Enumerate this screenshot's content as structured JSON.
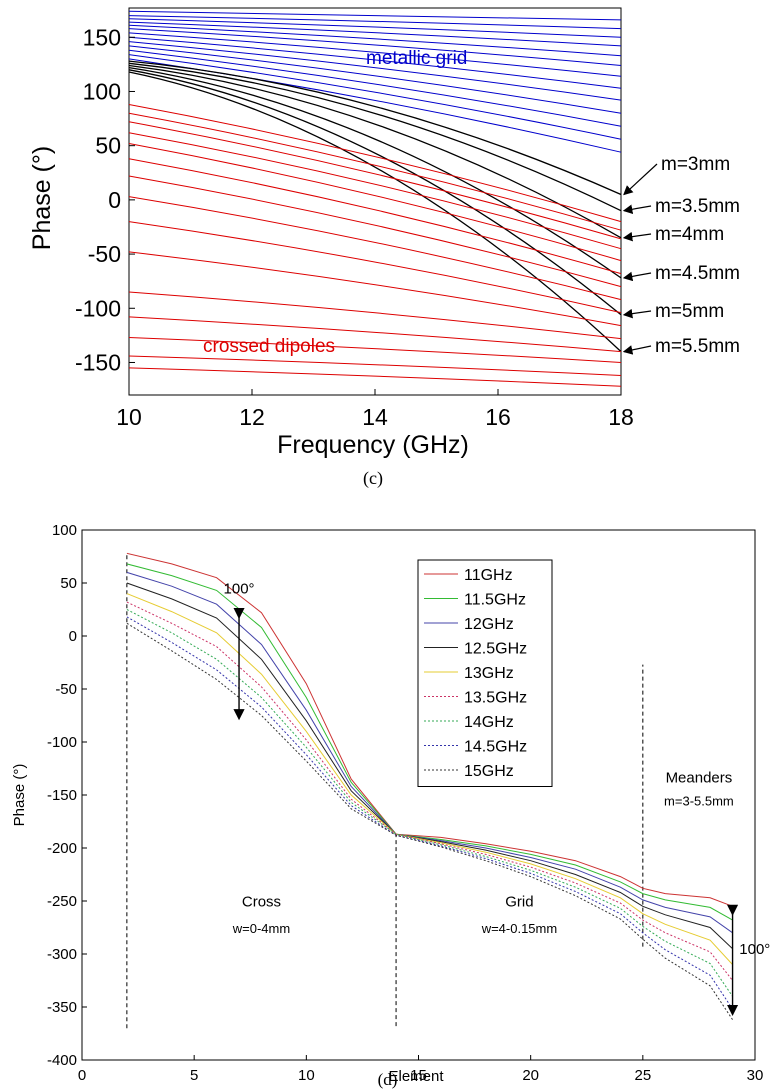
{
  "charts": [
    {
      "caption": "(c)",
      "chart_data": {
        "type": "line",
        "xlabel": "Frequency (GHz)",
        "ylabel": "Phase (°)",
        "xlim": [
          10,
          18
        ],
        "ylim": [
          -180,
          180
        ],
        "xticks": [
          10,
          12,
          14,
          16,
          18
        ],
        "yticks": [
          150,
          100,
          50,
          0,
          -50,
          -100,
          -150
        ],
        "grid": false,
        "groups": [
          {
            "label": "metallic grid",
            "color": "#0000cc",
            "series": [
              {
                "values": [
                  174,
                  166
                ]
              },
              {
                "values": [
                  170,
                  158
                ]
              },
              {
                "values": [
                  167,
                  150
                ]
              },
              {
                "values": [
                  164,
                  142
                ]
              },
              {
                "values": [
                  161,
                  133
                ]
              },
              {
                "values": [
                  158,
                  124
                ]
              },
              {
                "values": [
                  154,
                  114
                ]
              },
              {
                "values": [
                  150,
                  103
                ]
              },
              {
                "values": [
                  146,
                  92
                ]
              },
              {
                "values": [
                  142,
                  80
                ]
              },
              {
                "values": [
                  138,
                  68
                ]
              },
              {
                "values": [
                  134,
                  56
                ]
              },
              {
                "values": [
                  130,
                  44
                ]
              }
            ]
          },
          {
            "label": "meanders",
            "color": "#000000",
            "series": [
              {
                "name": "m=3mm",
                "values": [
                  128,
                  5
                ]
              },
              {
                "name": "m=3.5mm",
                "values": [
                  126,
                  -10
                ]
              },
              {
                "name": "m=4mm",
                "values": [
                  124,
                  -35
                ]
              },
              {
                "name": "m=4.5mm",
                "values": [
                  122,
                  -72
                ]
              },
              {
                "name": "m=5mm",
                "values": [
                  120,
                  -106
                ]
              },
              {
                "name": "m=5.5mm",
                "values": [
                  118,
                  -140
                ]
              }
            ]
          },
          {
            "label": "crossed dipoles",
            "color": "#dd0000",
            "series": [
              {
                "values": [
                  88,
                  -20
                ]
              },
              {
                "values": [
                  80,
                  -28
                ]
              },
              {
                "values": [
                  72,
                  -36
                ]
              },
              {
                "values": [
                  62,
                  -45
                ]
              },
              {
                "values": [
                  52,
                  -56
                ]
              },
              {
                "values": [
                  38,
                  -68
                ]
              },
              {
                "values": [
                  22,
                  -80
                ]
              },
              {
                "values": [
                  3,
                  -92
                ]
              },
              {
                "values": [
                  -20,
                  -104
                ]
              },
              {
                "values": [
                  -48,
                  -116
                ]
              },
              {
                "values": [
                  -85,
                  -128
                ]
              },
              {
                "values": [
                  -108,
                  -140
                ]
              },
              {
                "values": [
                  -127,
                  -150
                ]
              },
              {
                "values": [
                  -144,
                  -162
                ]
              },
              {
                "values": [
                  -155,
                  -172
                ]
              }
            ]
          }
        ],
        "annotations": [
          "metallic grid",
          "crossed dipoles"
        ]
      }
    },
    {
      "caption": "(d)",
      "chart_data": {
        "type": "line",
        "xlabel": "Element",
        "ylabel": "Phase (°)",
        "xlim": [
          0,
          30
        ],
        "ylim": [
          -400,
          100
        ],
        "xticks": [
          0,
          5,
          10,
          15,
          20,
          25,
          30
        ],
        "yticks": [
          100,
          50,
          0,
          -50,
          -100,
          -150,
          -200,
          -250,
          -300,
          -350,
          -400
        ],
        "grid": false,
        "legend_position": "top-center",
        "x": [
          2,
          4,
          6,
          8,
          10,
          12,
          14,
          16,
          18,
          20,
          22,
          24,
          25,
          26,
          28,
          29
        ],
        "series": [
          {
            "name": "11GHz",
            "color": "#cc3333",
            "dash": "solid",
            "values": [
              78,
              68,
              55,
              22,
              -45,
              -135,
              -187,
              -190,
              -196,
              -203,
              -212,
              -227,
              -238,
              -243,
              -247,
              -255
            ]
          },
          {
            "name": "11.5GHz",
            "color": "#33bb33",
            "dash": "solid",
            "values": [
              68,
              57,
              43,
              8,
              -58,
              -138,
              -187,
              -192,
              -198,
              -206,
              -216,
              -232,
              -243,
              -249,
              -256,
              -268
            ]
          },
          {
            "name": "12GHz",
            "color": "#4444aa",
            "dash": "solid",
            "values": [
              60,
              47,
              30,
              -8,
              -70,
              -142,
              -187,
              -193,
              -200,
              -209,
              -220,
              -237,
              -249,
              -256,
              -265,
              -280
            ]
          },
          {
            "name": "12.5GHz",
            "color": "#222222",
            "dash": "solid",
            "values": [
              50,
              35,
              17,
              -22,
              -80,
              -146,
              -187,
              -194,
              -202,
              -212,
              -225,
              -242,
              -255,
              -263,
              -275,
              -295
            ]
          },
          {
            "name": "13GHz",
            "color": "#e6cc33",
            "dash": "solid",
            "values": [
              40,
              23,
              3,
              -36,
              -90,
              -150,
              -187,
              -195,
              -204,
              -215,
              -229,
              -247,
              -262,
              -272,
              -287,
              -310
            ]
          },
          {
            "name": "13.5GHz",
            "color": "#cc3366",
            "dash": "dotted",
            "values": [
              32,
              12,
              -10,
              -48,
              -98,
              -154,
              -187,
              -196,
              -206,
              -218,
              -233,
              -252,
              -268,
              -280,
              -298,
              -325
            ]
          },
          {
            "name": "14GHz",
            "color": "#33aa55",
            "dash": "dotted",
            "values": [
              25,
              3,
              -22,
              -58,
              -105,
              -157,
              -187,
              -197,
              -208,
              -221,
              -237,
              -257,
              -274,
              -288,
              -309,
              -340
            ]
          },
          {
            "name": "14.5GHz",
            "color": "#3333aa",
            "dash": "dotted",
            "values": [
              18,
              -6,
              -32,
              -67,
              -112,
              -160,
              -188,
              -198,
              -210,
              -224,
              -241,
              -262,
              -280,
              -296,
              -320,
              -352
            ]
          },
          {
            "name": "15GHz",
            "color": "#333333",
            "dash": "dotted",
            "values": [
              12,
              -14,
              -41,
              -75,
              -118,
              -163,
              -188,
              -199,
              -212,
              -227,
              -245,
              -267,
              -286,
              -304,
              -330,
              -362
            ]
          }
        ],
        "vlines": [
          {
            "x": 2,
            "y1": -370,
            "y2": 78
          },
          {
            "x": 14,
            "y1": -368,
            "y2": -187
          },
          {
            "x": 25,
            "y1": -293,
            "y2": -27
          }
        ],
        "arrows": [
          {
            "x": 7,
            "y1": 25,
            "y2": -78
          },
          {
            "x": 29,
            "y1": -255,
            "y2": -357
          }
        ],
        "text_annotations": [
          {
            "key": "range_left",
            "text": "100°",
            "x": 7,
            "y": 40
          },
          {
            "key": "range_right",
            "text": "100°",
            "x": 29.3,
            "y": -300
          },
          {
            "key": "cross",
            "text": "Cross",
            "x": 8,
            "y": -255
          },
          {
            "key": "cross_w",
            "text": "w=0-4mm",
            "x": 8,
            "y": -280
          },
          {
            "key": "grid",
            "text": "Grid",
            "x": 19.5,
            "y": -255
          },
          {
            "key": "grid_w",
            "text": "w=4-0.15mm",
            "x": 19.5,
            "y": -280
          },
          {
            "key": "meanders",
            "text": "Meanders",
            "x": 27.5,
            "y": -138
          },
          {
            "key": "meanders_m",
            "text": "m=3-5.5mm",
            "x": 27.5,
            "y": -160
          }
        ]
      }
    }
  ]
}
